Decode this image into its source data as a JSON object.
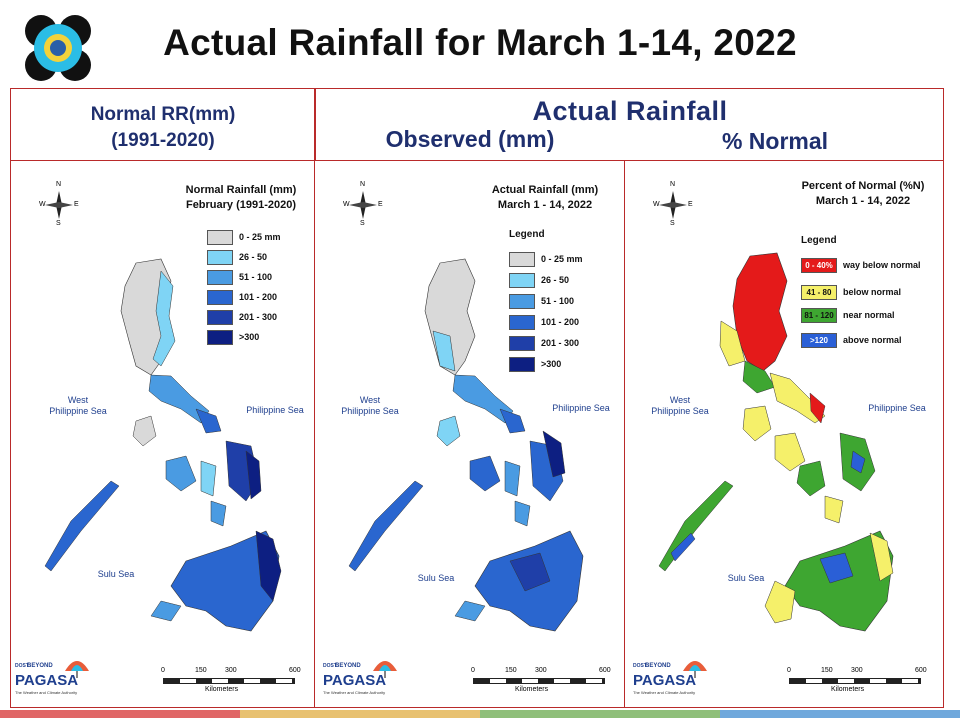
{
  "slide": {
    "title": "Actual Rainfall for March 1-14, 2022"
  },
  "header": {
    "left_line1": "Normal RR(mm)",
    "left_line2": "(1991-2020)",
    "right_title": "Actual Rainfall",
    "sub_observed": "Observed (mm)",
    "sub_percent": "% Normal"
  },
  "panels": {
    "normal": {
      "title_line1": "Normal Rainfall (mm)",
      "title_line2": "February (1991-2020)",
      "legend": [
        {
          "label": "0 - 25 mm",
          "color": "#d9d9d9"
        },
        {
          "label": "26 - 50",
          "color": "#7fd4f5"
        },
        {
          "label": "51 - 100",
          "color": "#4a9be2"
        },
        {
          "label": "101 - 200",
          "color": "#2a66cf"
        },
        {
          "label": "201 - 300",
          "color": "#1f3fa8"
        },
        {
          "label": ">300",
          "color": "#0d1f82"
        }
      ]
    },
    "actual": {
      "title_line1": "Actual Rainfall (mm)",
      "title_line2": "March 1 - 14, 2022",
      "legend_title": "Legend",
      "legend": [
        {
          "label": "0 - 25 mm",
          "color": "#d9d9d9"
        },
        {
          "label": "26 - 50",
          "color": "#7fd4f5"
        },
        {
          "label": "51 - 100",
          "color": "#4a9be2"
        },
        {
          "label": "101 - 200",
          "color": "#2a66cf"
        },
        {
          "label": "201 - 300",
          "color": "#1f3fa8"
        },
        {
          "label": ">300",
          "color": "#0d1f82"
        }
      ]
    },
    "percent": {
      "title_line1": "Percent of Normal (%N)",
      "title_line2": "March 1 - 14, 2022",
      "legend_title": "Legend",
      "legend": [
        {
          "range": "0 - 40%",
          "label": "way below normal",
          "color": "#e41a1a"
        },
        {
          "range": "41 - 80",
          "label": "below normal",
          "color": "#f5f06a"
        },
        {
          "range": "81 - 120",
          "label": "near normal",
          "color": "#3ea631"
        },
        {
          "range": ">120",
          "label": "above normal",
          "color": "#2a5fd6"
        }
      ]
    }
  },
  "map_labels": {
    "west_sea_line1": "West",
    "west_sea_line2": "Philippine Sea",
    "east_sea": "Philippine Sea",
    "sulu_sea": "Sulu Sea"
  },
  "compass": {
    "n": "N",
    "s": "S",
    "e": "E",
    "w": "W"
  },
  "scale_bar": {
    "ticks": [
      "0",
      "150",
      "300",
      "600"
    ],
    "unit": "Kilometers"
  },
  "logo": {
    "dost": "DOST",
    "beyond": "BEYOND",
    "pagasa": "PAGASA",
    "tagline": "The Weather and Climate Authority"
  },
  "bottom_bar_colors": [
    "#e06666",
    "#e8c170",
    "#8fbf7a",
    "#6fa8dc"
  ]
}
